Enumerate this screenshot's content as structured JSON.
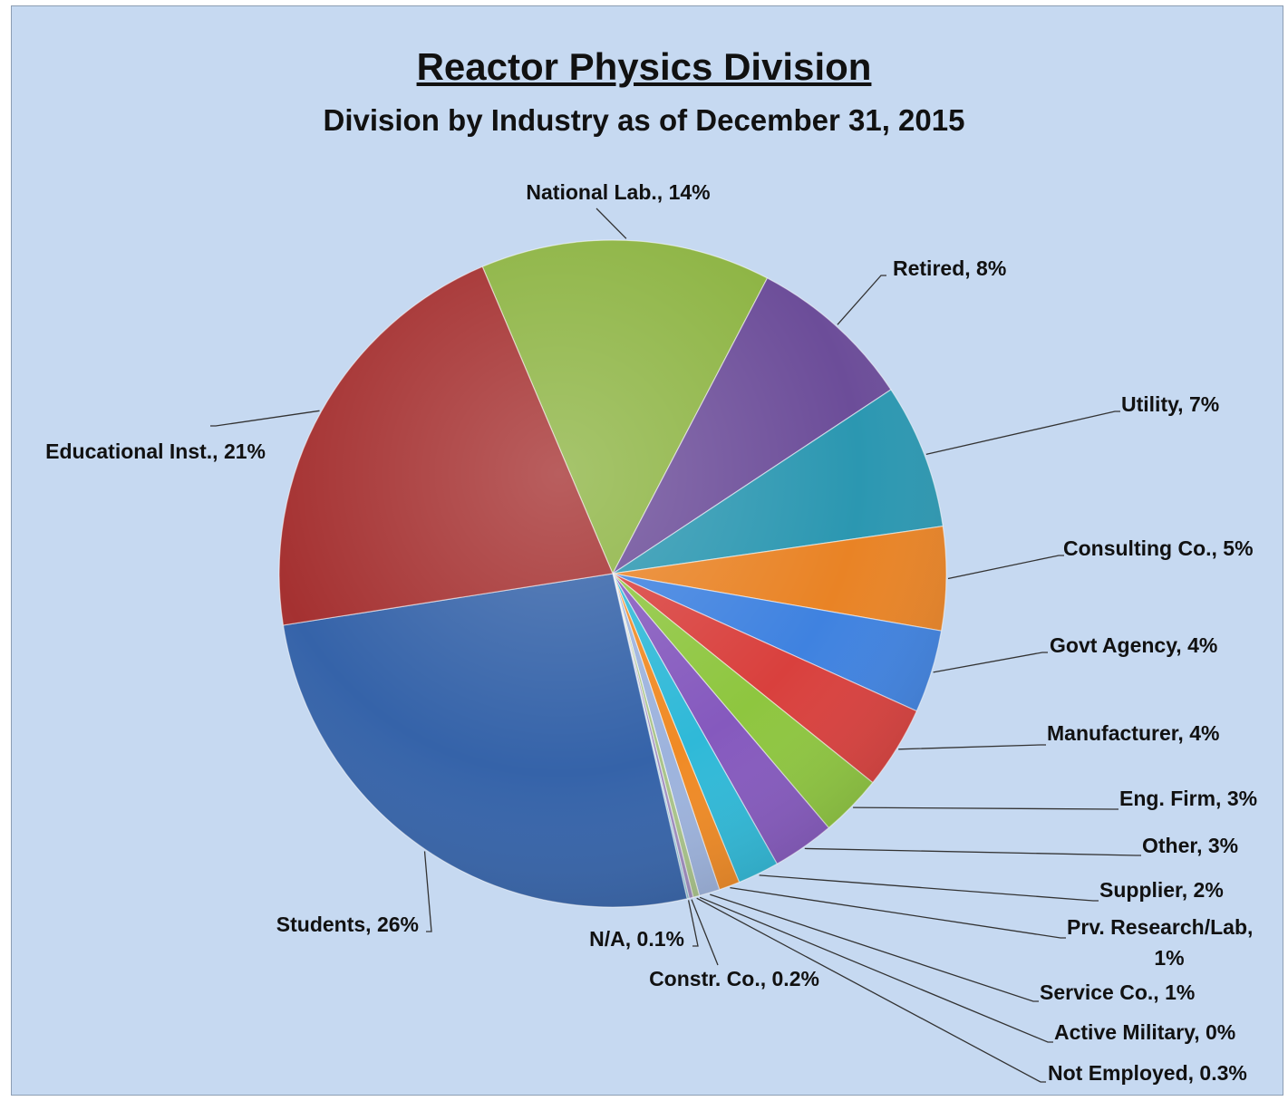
{
  "chart_data": {
    "type": "pie",
    "title": "Reactor Physics Division",
    "subtitle": "Division by Industry as of December 31, 2015",
    "slices": [
      {
        "label": "National Lab., 14%",
        "name": "National Lab.",
        "value": 14,
        "color": "#8db443"
      },
      {
        "label": "Retired, 8%",
        "name": "Retired",
        "value": 8,
        "color": "#6c4d99"
      },
      {
        "label": "Utility, 7%",
        "name": "Utility",
        "value": 7,
        "color": "#2b97b1"
      },
      {
        "label": "Consulting  Co., 5%",
        "name": "Consulting Co.",
        "value": 5,
        "color": "#e98325"
      },
      {
        "label": "Govt Agency, 4%",
        "name": "Govt Agency",
        "value": 4,
        "color": "#3f82e0"
      },
      {
        "label": "Manufacturer, 4%",
        "name": "Manufacturer",
        "value": 4,
        "color": "#d9403d"
      },
      {
        "label": "Eng. Firm, 3%",
        "name": "Eng. Firm",
        "value": 3,
        "color": "#8ec63f"
      },
      {
        "label": "Other, 3%",
        "name": "Other",
        "value": 3,
        "color": "#8559be"
      },
      {
        "label": "Supplier, 2%",
        "name": "Supplier",
        "value": 2,
        "color": "#2fb9d8"
      },
      {
        "label": "Prv. Research/Lab, 1%",
        "name": "Prv. Research/Lab",
        "value": 1,
        "color": "#f08a24"
      },
      {
        "label": "Service Co., 1%",
        "name": "Service Co.",
        "value": 1,
        "color": "#9db3dd"
      },
      {
        "label": "Active Military, 0%",
        "name": "Active Military",
        "value": 0,
        "color": "#d98b8b"
      },
      {
        "label": "Not Employed, 0.3%",
        "name": "Not Employed",
        "value": 0.3,
        "color": "#a9c48a"
      },
      {
        "label": "Constr. Co., 0.2%",
        "name": "Constr. Co.",
        "value": 0.2,
        "color": "#9e8cc0"
      },
      {
        "label": "N/A, 0.1%",
        "name": "N/A",
        "value": 0.1,
        "color": "#88c0d3"
      },
      {
        "label": "Students, 26%",
        "name": "Students",
        "value": 26,
        "color": "#3563a9"
      },
      {
        "label": "Educational Inst., 21%",
        "name": "Educational Inst.",
        "value": 21,
        "color": "#a53131"
      }
    ],
    "start_angle_deg": -23,
    "direction": "clockwise"
  }
}
